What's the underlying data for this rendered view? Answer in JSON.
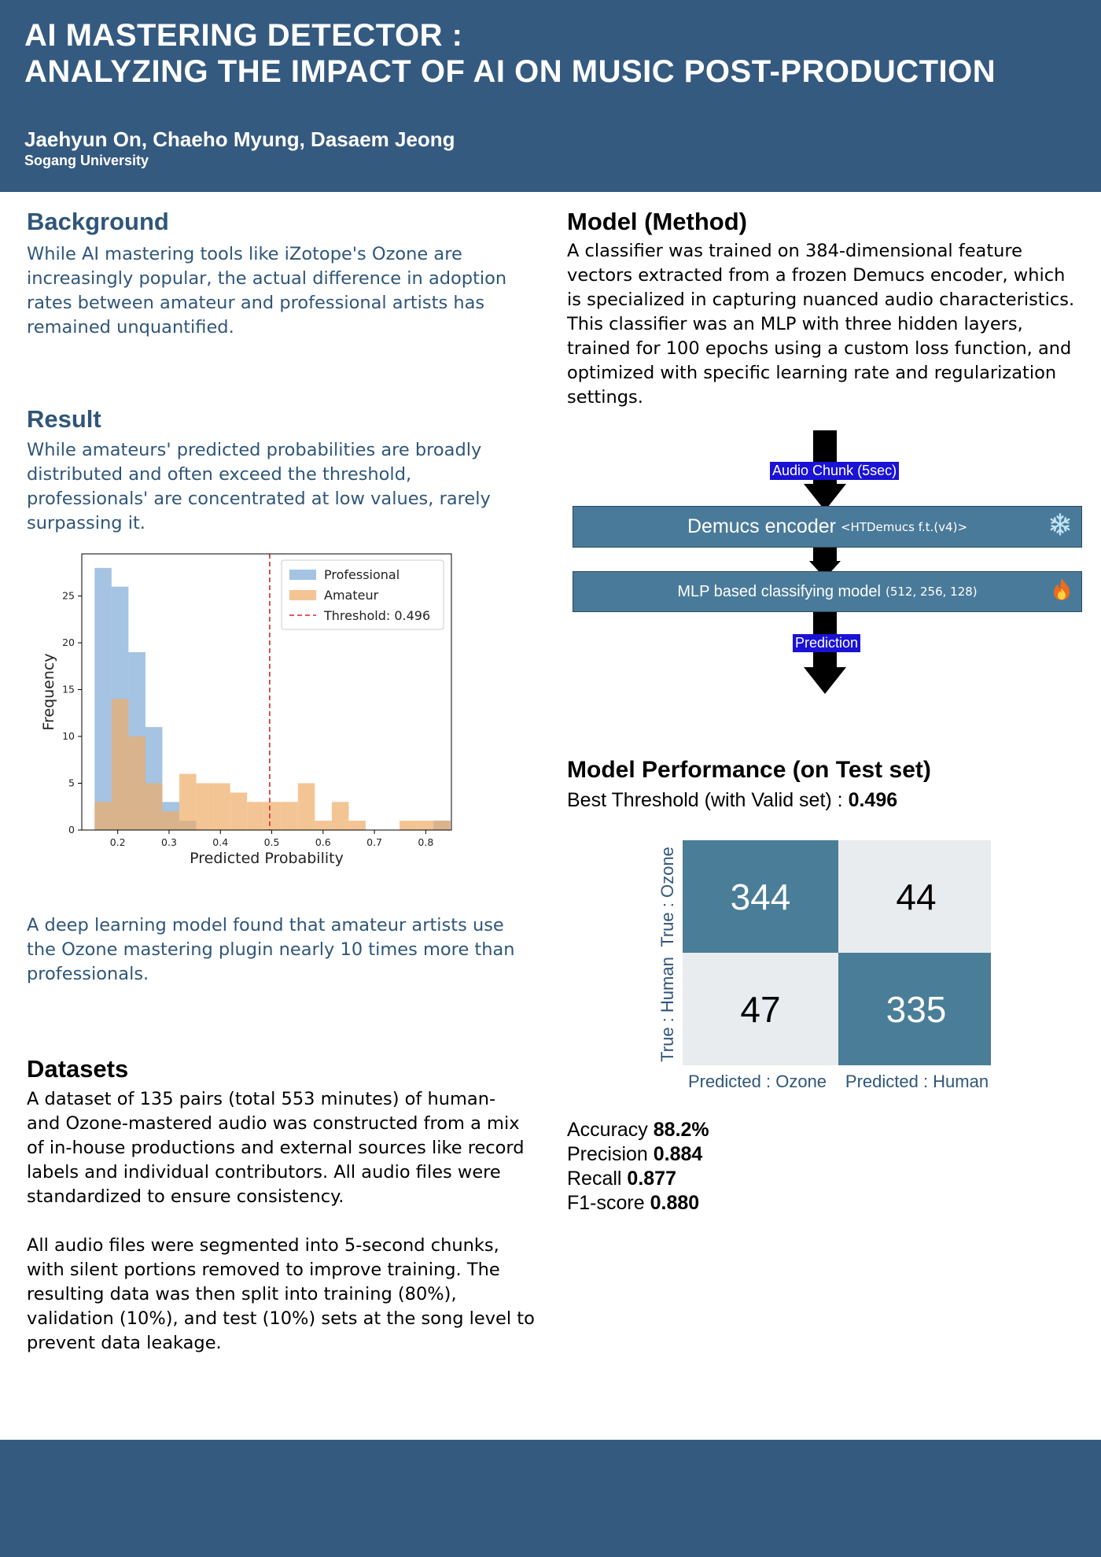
{
  "header": {
    "title_line1": "AI MASTERING DETECTOR :",
    "title_line2": "ANALYZING THE IMPACT OF AI ON MUSIC POST-PRODUCTION",
    "authors": "Jaehyun On, Chaeho Myung, Dasaem Jeong",
    "affiliation": "Sogang University"
  },
  "background": {
    "heading": "Background",
    "lines": [
      "While AI mastering tools like iZotope's Ozone are",
      "increasingly popular, the actual difference in adoption",
      "rates between amateur and professional artists has",
      "remained unquantified."
    ]
  },
  "result": {
    "heading": "Result",
    "lines": [
      "While amateurs' predicted probabilities are broadly",
      "distributed and often exceed the threshold,",
      "professionals' are concentrated at low values, rarely",
      "surpassing it."
    ],
    "finding_lines": [
      "A deep learning model found that amateur artists use",
      "the Ozone mastering plugin nearly 10 times more than",
      "professionals."
    ]
  },
  "datasets": {
    "heading": "Datasets",
    "para1_lines": [
      "A dataset of 135 pairs (total 553 minutes) of human-",
      "and Ozone-mastered audio was constructed from a mix",
      "of in-house productions and external sources like record",
      "labels and individual contributors. All audio files were",
      "standardized to ensure consistency."
    ],
    "para2_lines": [
      "All audio files were segmented into 5-second chunks,",
      "with silent portions removed to improve training. The",
      "resulting data was then split into training (80%),",
      "validation (10%), and test (10%) sets at the song level to",
      "prevent data leakage."
    ]
  },
  "method": {
    "heading": "Model (Method)",
    "lines": [
      "A classifier was trained on 384-dimensional feature",
      "vectors extracted from a frozen Demucs encoder, which",
      "is specialized in capturing nuanced audio characteristics.",
      "This classifier was an MLP with three hidden layers,",
      "trained for 100 epochs using a custom loss function, and",
      "optimized with specific learning rate and regularization",
      "settings."
    ],
    "pipeline": {
      "input_tag": "Audio Chunk (5sec)",
      "encoder_label": "Demucs encoder",
      "encoder_sub": "<HTDemucs f.t.(v4)>",
      "encoder_icon": "snowflake-icon",
      "classifier_label": "MLP based classifying model",
      "classifier_sub": "(512, 256, 128)",
      "classifier_icon": "fire-icon",
      "output_tag": "Prediction"
    }
  },
  "performance": {
    "heading": "Model Performance (on Test set)",
    "threshold_label": "Best Threshold (with Valid set) : ",
    "threshold_value": "0.496",
    "confusion": {
      "cells": [
        [
          "344",
          "44"
        ],
        [
          "47",
          "335"
        ]
      ],
      "row_labels": [
        "True : Ozone",
        "True : Human"
      ],
      "col_labels": [
        "Predicted : Ozone",
        "Predicted : Human"
      ],
      "dark_color": "#4a7d98",
      "light_color": "#e8ecef"
    },
    "metrics": [
      {
        "label": "Accuracy ",
        "value": "88.2%"
      },
      {
        "label": "Precision ",
        "value": "0.884"
      },
      {
        "label": "Recall ",
        "value": "0.877"
      },
      {
        "label": "F1-score ",
        "value": "0.880"
      }
    ]
  },
  "chart_data": {
    "type": "bar",
    "title": "",
    "xlabel": "Predicted Probability",
    "ylabel": "Frequency",
    "xlim": [
      0.13,
      0.85
    ],
    "ylim": [
      0,
      29.5
    ],
    "xticks": [
      "0.2",
      "0.3",
      "0.4",
      "0.5",
      "0.6",
      "0.7",
      "0.8"
    ],
    "yticks": [
      "0",
      "5",
      "10",
      "15",
      "20",
      "25"
    ],
    "legend_position": "top-right",
    "bin_edges": [
      0.155,
      0.188,
      0.221,
      0.254,
      0.287,
      0.32,
      0.353,
      0.386,
      0.419,
      0.452,
      0.485,
      0.518,
      0.551,
      0.584,
      0.617,
      0.65,
      0.683,
      0.716,
      0.749,
      0.782,
      0.815,
      0.848
    ],
    "series": [
      {
        "name": "Professional",
        "color": "#7fa9d6",
        "values": [
          28,
          26,
          19,
          11,
          3,
          1,
          0,
          0,
          0,
          0,
          0,
          0,
          0,
          0,
          0,
          0,
          0,
          0,
          0,
          0,
          1
        ]
      },
      {
        "name": "Amateur",
        "color": "#f0ad66",
        "values": [
          3,
          14,
          10,
          5,
          2,
          6,
          5,
          5,
          4,
          3,
          3,
          3,
          5,
          1,
          3,
          1,
          0,
          0,
          1,
          1,
          1
        ]
      }
    ],
    "threshold": {
      "label": "Threshold: 0.496",
      "value": 0.496,
      "color": "#d62728"
    }
  }
}
